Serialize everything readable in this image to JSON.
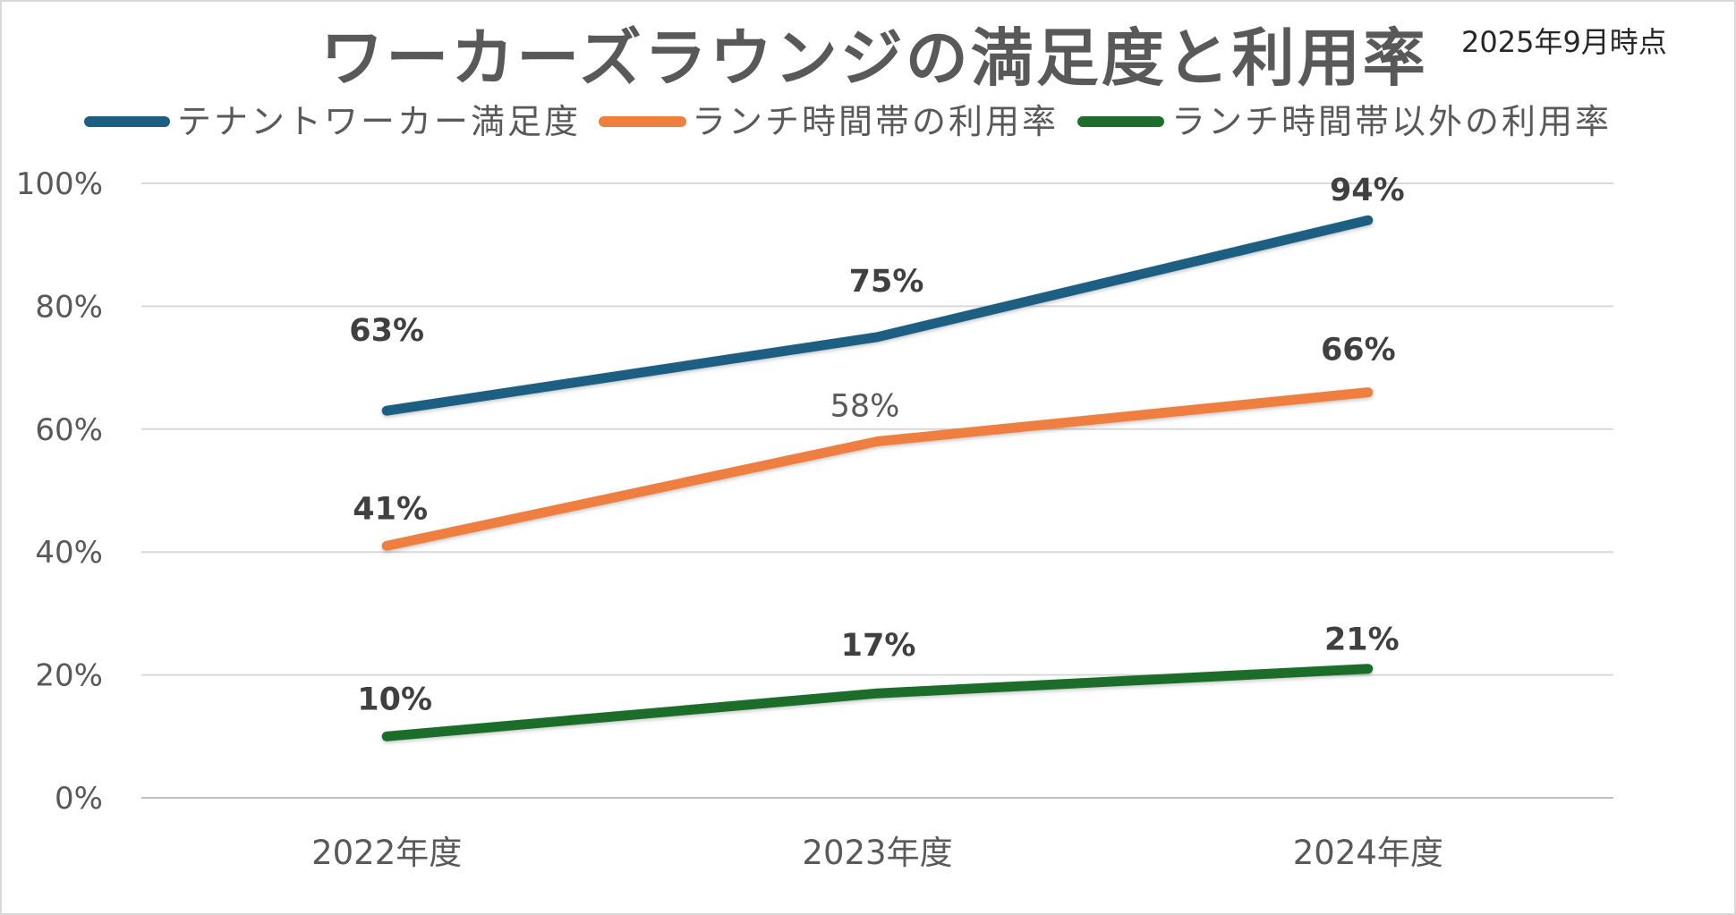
{
  "chart_data": {
    "type": "line",
    "title": "ワーカーズラウンジの満足度と利用率",
    "annotation": "2025年9月時点",
    "categories": [
      "2022年度",
      "2023年度",
      "2024年度"
    ],
    "ylim": [
      0,
      100
    ],
    "ytick_values": [
      0,
      20,
      40,
      60,
      80,
      100
    ],
    "yticks": [
      "0%",
      "20%",
      "40%",
      "60%",
      "80%",
      "100%"
    ],
    "grid": true,
    "legend": "top",
    "series": [
      {
        "name": "テナントワーカー満足度",
        "values": [
          63,
          75,
          94
        ],
        "labels": [
          "63%",
          "75%",
          "94%"
        ],
        "color": "#1c5f82"
      },
      {
        "name": "ランチ時間帯の利用率",
        "values": [
          41,
          58,
          66
        ],
        "labels": [
          "41%",
          "58%",
          "66%"
        ],
        "color": "#ee7f3f"
      },
      {
        "name": "ランチ時間帯以外の利用率",
        "values": [
          10,
          17,
          21
        ],
        "labels": [
          "10%",
          "17%",
          "21%"
        ],
        "color": "#1f6d2b"
      }
    ]
  }
}
